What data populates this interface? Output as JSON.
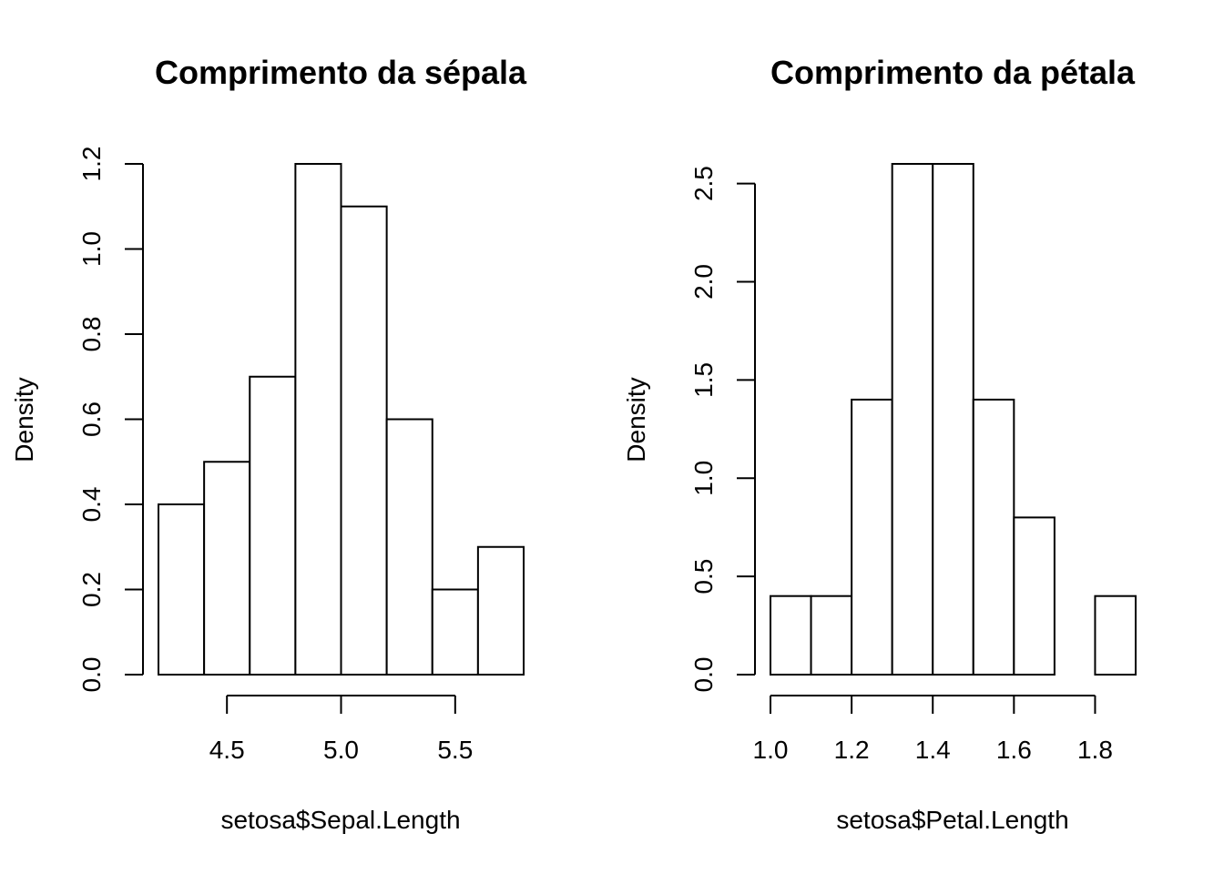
{
  "chart_data": [
    {
      "type": "bar",
      "title": "Comprimento da sépala",
      "xlabel": "setosa$Sepal.Length",
      "ylabel": "Density",
      "bin_edges": [
        4.2,
        4.4,
        4.6,
        4.8,
        5.0,
        5.2,
        5.4,
        5.6,
        5.8
      ],
      "values": [
        0.4,
        0.5,
        0.7,
        1.2,
        1.1,
        0.6,
        0.2,
        0.3
      ],
      "xlim": [
        4.2,
        5.8
      ],
      "ylim": [
        0,
        1.2
      ],
      "xticks": [
        4.5,
        5.0,
        5.5
      ],
      "xtick_labels": [
        "4.5",
        "5.0",
        "5.5"
      ],
      "yticks": [
        0,
        0.2,
        0.4,
        0.6,
        0.8,
        1.0,
        1.2
      ],
      "ytick_labels": [
        "0.0",
        "0.2",
        "0.4",
        "0.6",
        "0.8",
        "1.0",
        "1.2"
      ],
      "grid": false
    },
    {
      "type": "bar",
      "title": "Comprimento da pétala",
      "xlabel": "setosa$Petal.Length",
      "ylabel": "Density",
      "bin_edges": [
        1.0,
        1.1,
        1.2,
        1.3,
        1.4,
        1.5,
        1.6,
        1.7,
        1.8,
        1.9
      ],
      "values": [
        0.4,
        0.4,
        1.4,
        2.6,
        2.6,
        1.4,
        0.8,
        0.0,
        0.4
      ],
      "xlim": [
        1.0,
        1.9
      ],
      "ylim": [
        0,
        2.6
      ],
      "xticks": [
        1.0,
        1.2,
        1.4,
        1.6,
        1.8
      ],
      "xtick_labels": [
        "1.0",
        "1.2",
        "1.4",
        "1.6",
        "1.8"
      ],
      "yticks": [
        0,
        0.5,
        1.0,
        1.5,
        2.0,
        2.5
      ],
      "ytick_labels": [
        "0.0",
        "0.5",
        "1.0",
        "1.5",
        "2.0",
        "2.5"
      ],
      "grid": false
    }
  ]
}
